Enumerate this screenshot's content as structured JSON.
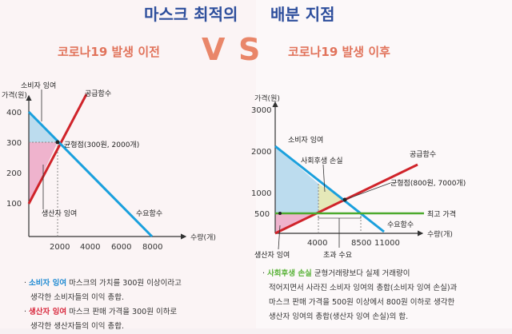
{
  "header": {
    "title_left": "마스크 최적의",
    "title_right": "배분 지점",
    "sub_left": "코로나19 발생 이전",
    "sub_right": "코로나19 발생 이후",
    "vs_v": "V",
    "vs_s": "S"
  },
  "colors": {
    "title": "#2d4e9c",
    "subtitle": "#e1735b",
    "demand": "#1aa0dd",
    "supply": "#d0232a",
    "price_line": "#4daa2e",
    "consumer_area": "#bcdcee",
    "producer_area": "#efb3cd",
    "deadweight_area": "#e5e8b8"
  },
  "chart_data": [
    {
      "type": "line",
      "xlabel": "수량(개)",
      "ylabel": "가격(원)",
      "x_ticks": [
        "2000",
        "4000",
        "6000",
        "8000"
      ],
      "y_ticks": [
        "100",
        "200",
        "300",
        "400"
      ],
      "series": [
        {
          "name": "공급함수",
          "x": [
            0,
            3500
          ],
          "y": [
            100,
            450
          ]
        },
        {
          "name": "수요함수",
          "x": [
            0,
            8000
          ],
          "y": [
            400,
            0
          ]
        }
      ],
      "equilibrium": {
        "x": 2000,
        "y": 300
      },
      "labels": {
        "consumer": "소비자 잉여",
        "producer": "생산자 잉여",
        "supply": "공급함수",
        "demand": "수요함수",
        "equilibrium": "균형점(300원, 2000개)"
      }
    },
    {
      "type": "line",
      "xlabel": "수량(개)",
      "ylabel": "가격(원)",
      "x_ticks": [
        "4000",
        "8500",
        "11000"
      ],
      "y_ticks": [
        "500",
        "1000",
        "2000",
        "3000"
      ],
      "series": [
        {
          "name": "공급함수",
          "x": [
            0,
            13000
          ],
          "y": [
            0,
            1650
          ]
        },
        {
          "name": "수요함수",
          "x": [
            0,
            11000
          ],
          "y": [
            2150,
            250
          ]
        },
        {
          "name": "최고 가격",
          "x": [
            0,
            13000
          ],
          "y": [
            500,
            500
          ]
        }
      ],
      "equilibrium": {
        "x": 7000,
        "y": 800
      },
      "labels": {
        "consumer": "소비자 잉여",
        "producer": "생산자 잉여",
        "deadweight": "사회후생 손실",
        "supply": "공급함수",
        "demand": "수요함수",
        "equilibrium": "균형점(800원, 7000개)",
        "price_cap": "최고 가격",
        "excess": "초과 수요"
      }
    }
  ],
  "notes_left": [
    {
      "title": "소비자 잉여",
      "text": " 마스크의 가치를 300원 이상이라고",
      "cont": "생각한 소비자들의 이익 총합."
    },
    {
      "title": "생산자 잉여",
      "text": " 마스크 판매 가격을 300원 이하로",
      "cont": "생각한 생산자들의 이익 총합."
    }
  ],
  "notes_right": {
    "title": "사회후생 손실",
    "lines": [
      " 균형거래량보다 실제 거래량이",
      "적어지면서 사라진 소비자 잉여의 총합(소비자 잉여 손실)과",
      "마스크 판매 가격을 500원 이상에서 800원 이하로 생각한",
      "생산자 잉여의 총합(생산자 잉여 손실)의 합."
    ]
  }
}
